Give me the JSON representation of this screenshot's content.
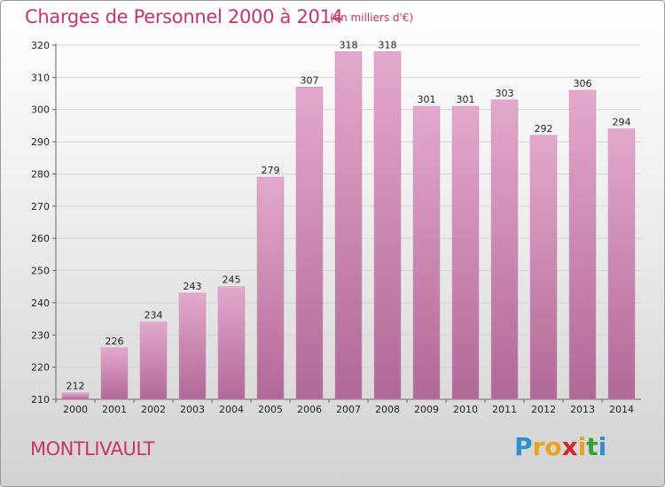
{
  "header": {
    "title": "Charges de Personnel 2000 à 2014",
    "subtitle": "(en milliers d'€)"
  },
  "footer": {
    "commune": "MONTLIVAULT",
    "logo_letters": [
      "P",
      "r",
      "o",
      "x",
      "i",
      "t",
      "i"
    ],
    "logo_colors": [
      "#2e8fd0",
      "#e9a21a",
      "#e9a21a",
      "#d8262a",
      "#e9a21a",
      "#3aa035",
      "#2e8fd0"
    ]
  },
  "chart_data": {
    "type": "bar",
    "title": "Charges de Personnel 2000 à 2014",
    "subtitle": "(en milliers d'€)",
    "categories": [
      "2000",
      "2001",
      "2002",
      "2003",
      "2004",
      "2005",
      "2006",
      "2007",
      "2008",
      "2009",
      "2010",
      "2011",
      "2012",
      "2013",
      "2014"
    ],
    "values": [
      212,
      226,
      234,
      243,
      245,
      279,
      307,
      318,
      318,
      301,
      301,
      303,
      292,
      306,
      294
    ],
    "ylim": [
      210,
      320
    ],
    "yticks": [
      210,
      220,
      230,
      240,
      250,
      260,
      270,
      280,
      290,
      300,
      310,
      320
    ],
    "grid": true,
    "bar_color_top": "#e4a8cc",
    "bar_color_bottom": "#b06896"
  }
}
